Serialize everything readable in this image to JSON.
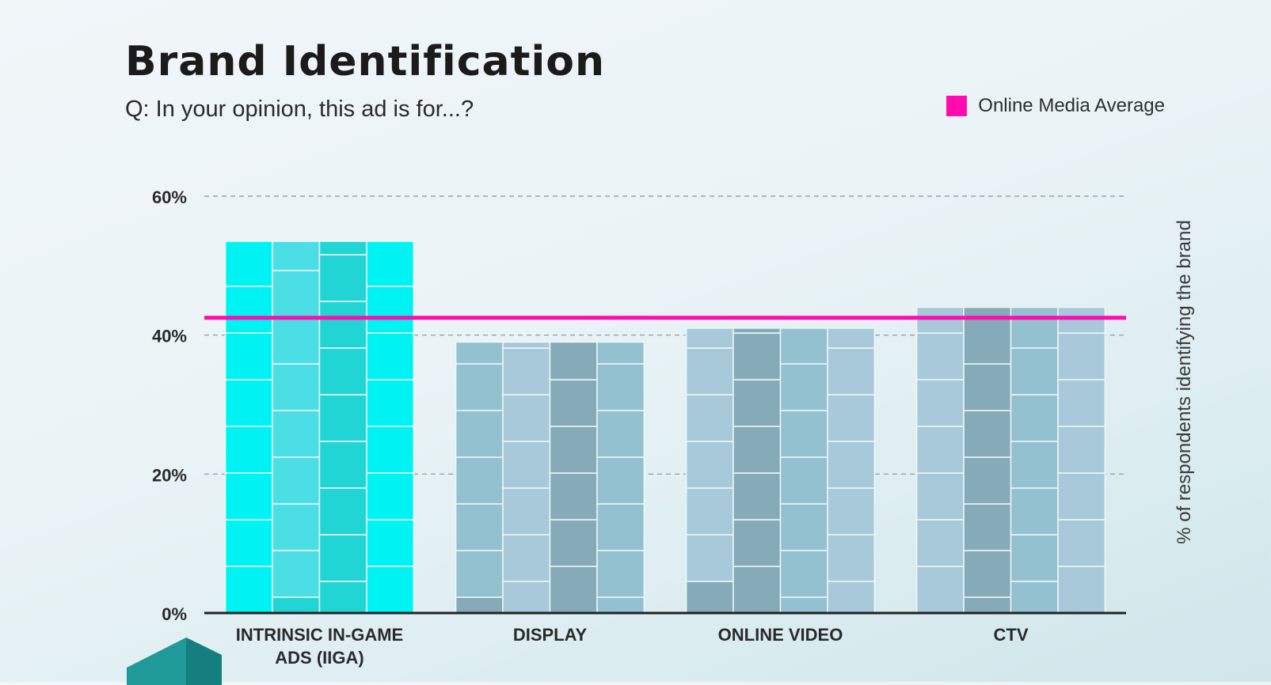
{
  "title": "Brand Identification",
  "subtitle": "Q: In your opinion, this ad is for...?",
  "legend": {
    "label": "Online Media Average",
    "color": "#ff0bb0"
  },
  "chart_data": {
    "type": "bar",
    "title": "Brand Identification",
    "subtitle": "Q: In your opinion, this ad is for...?",
    "categories": [
      "INTRINSIC IN-GAME ADS (IIGA)",
      "DISPLAY",
      "ONLINE VIDEO",
      "CTV"
    ],
    "category_lines": [
      [
        "INTRINSIC IN-GAME",
        "ADS (IIGA)"
      ],
      [
        "DISPLAY"
      ],
      [
        "ONLINE VIDEO"
      ],
      [
        "CTV"
      ]
    ],
    "values": [
      53.5,
      39,
      41,
      44
    ],
    "reference_line": {
      "name": "Online Media Average",
      "value": 42.5,
      "color": "#ff0bb0"
    },
    "xlabel": "",
    "ylabel": "% of respondents identifying the brand",
    "ylim": [
      0,
      60
    ],
    "yticks": [
      0,
      20,
      40,
      60
    ],
    "ytick_labels": [
      "0%",
      "20%",
      "40%",
      "60%"
    ],
    "grid": true,
    "legend_position": "top-right",
    "bar_palettes": [
      [
        "#00f3f3",
        "#22d5d5",
        "#4bdfe5"
      ],
      [
        "#a7c9da",
        "#94c1cf",
        "#84abb7"
      ],
      [
        "#94c1cf",
        "#84abb7",
        "#a7c9da"
      ],
      [
        "#a7c9da",
        "#94c1cf",
        "#84abb7"
      ]
    ]
  }
}
